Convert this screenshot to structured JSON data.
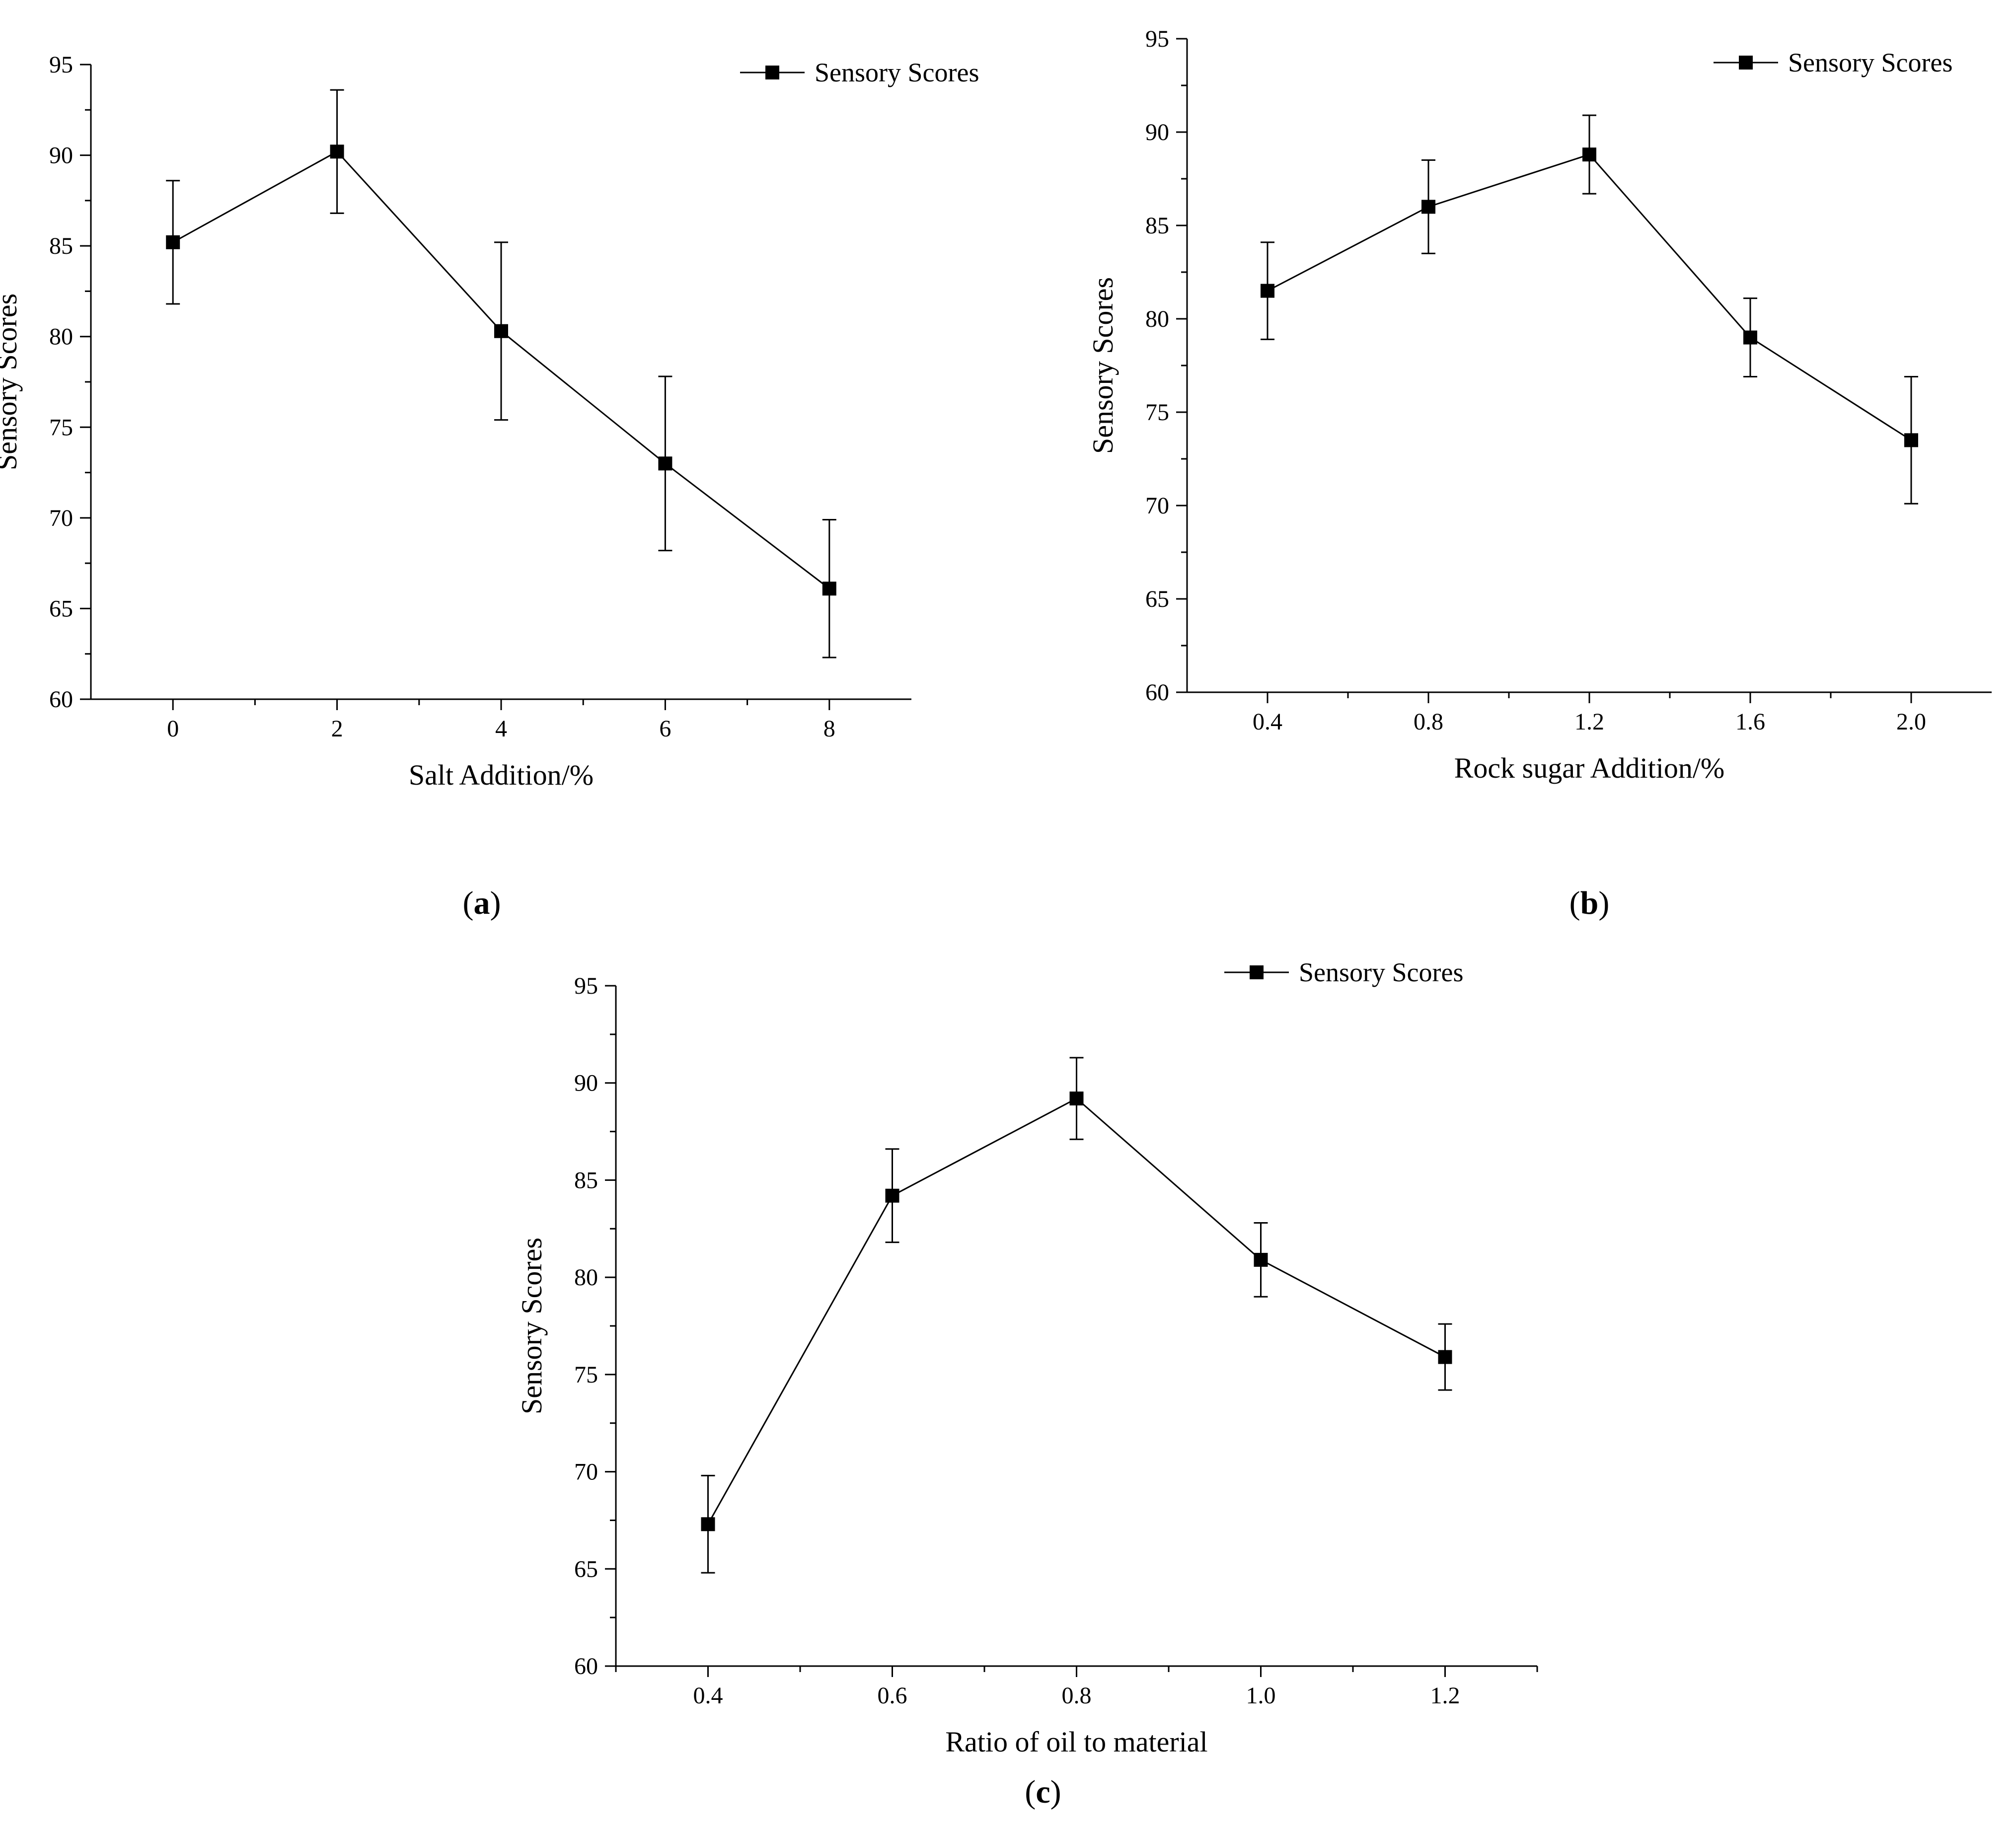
{
  "chart_data": [
    {
      "id": "a",
      "type": "line",
      "caption": "(a)",
      "caption_letter": "a",
      "xlabel": "Salt Addition/%",
      "ylabel": "Sensory Scores",
      "xlim": [
        -1,
        9
      ],
      "ylim": [
        60,
        95
      ],
      "xticks": [
        0,
        2,
        4,
        6,
        8
      ],
      "xtick_labels": [
        "0",
        "2",
        "4",
        "6",
        "8"
      ],
      "yticks": [
        60,
        65,
        70,
        75,
        80,
        85,
        90,
        95
      ],
      "ytick_labels": [
        "60",
        "65",
        "70",
        "75",
        "80",
        "85",
        "90",
        "95"
      ],
      "legend": {
        "label": "Sensory Scores",
        "position": "top-right"
      },
      "series": [
        {
          "name": "Sensory Scores",
          "x": [
            0,
            2,
            4,
            6,
            8
          ],
          "values": [
            85.2,
            90.2,
            80.3,
            73.0,
            66.1
          ],
          "error": [
            3.4,
            3.4,
            4.9,
            4.8,
            3.8
          ]
        }
      ],
      "grid": false
    },
    {
      "id": "b",
      "type": "line",
      "caption": "(b)",
      "caption_letter": "b",
      "xlabel": "Rock sugar Addition/%",
      "ylabel": "Sensory Scores",
      "xlim": [
        0.2,
        2.2
      ],
      "ylim": [
        60,
        95
      ],
      "xticks": [
        0.4,
        0.8,
        1.2,
        1.6,
        2.0
      ],
      "xtick_labels": [
        "0.4",
        "0.8",
        "1.2",
        "1.6",
        "2.0"
      ],
      "yticks": [
        60,
        65,
        70,
        75,
        80,
        85,
        90,
        95
      ],
      "ytick_labels": [
        "60",
        "65",
        "70",
        "75",
        "80",
        "85",
        "90",
        "95"
      ],
      "legend": {
        "label": "Sensory Scores",
        "position": "top-right"
      },
      "series": [
        {
          "name": "Sensory Scores",
          "x": [
            0.4,
            0.8,
            1.2,
            1.6,
            2.0
          ],
          "values": [
            81.5,
            86.0,
            88.8,
            79.0,
            73.5
          ],
          "error": [
            2.6,
            2.5,
            2.1,
            2.1,
            3.4
          ]
        }
      ],
      "grid": false
    },
    {
      "id": "c",
      "type": "line",
      "caption": "(c)",
      "caption_letter": "c",
      "xlabel": "Ratio of oil to material",
      "ylabel": "Sensory Scores",
      "xlim": [
        0.3,
        1.3
      ],
      "ylim": [
        60,
        95
      ],
      "xticks": [
        0.4,
        0.6,
        0.8,
        1.0,
        1.2
      ],
      "xtick_labels": [
        "0.4",
        "0.6",
        "0.8",
        "1.0",
        "1.2"
      ],
      "yticks": [
        60,
        65,
        70,
        75,
        80,
        85,
        90,
        95
      ],
      "ytick_labels": [
        "60",
        "65",
        "70",
        "75",
        "80",
        "85",
        "90",
        "95"
      ],
      "legend": {
        "label": "Sensory Scores",
        "position": "top-right"
      },
      "series": [
        {
          "name": "Sensory Scores",
          "x": [
            0.4,
            0.6,
            0.8,
            1.0,
            1.2
          ],
          "values": [
            67.3,
            84.2,
            89.2,
            80.9,
            75.9
          ],
          "error": [
            2.5,
            2.4,
            2.1,
            1.9,
            1.7
          ]
        }
      ],
      "grid": false
    }
  ],
  "colors": {
    "line": "#000000",
    "marker": "#000000",
    "background": "#ffffff"
  }
}
